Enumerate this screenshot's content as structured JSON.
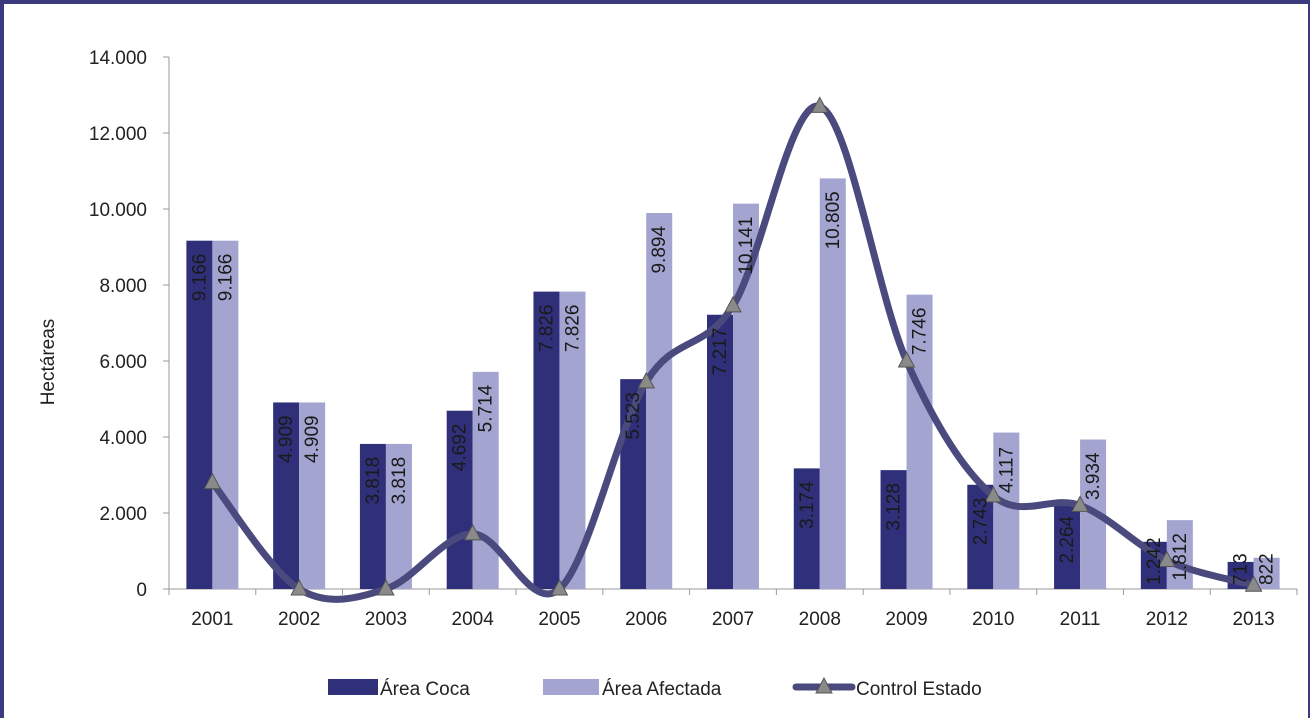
{
  "chart_data": {
    "type": "bar",
    "categories": [
      "2001",
      "2002",
      "2003",
      "2004",
      "2005",
      "2006",
      "2007",
      "2008",
      "2009",
      "2010",
      "2011",
      "2012",
      "2013"
    ],
    "series": [
      {
        "name": "Área Coca",
        "type": "bar",
        "color": "#2f2f7a",
        "values": [
          9166,
          4909,
          3818,
          4692,
          7826,
          5523,
          7217,
          3174,
          3128,
          2743,
          2264,
          1242,
          713
        ],
        "labels": [
          "9.166",
          "4.909",
          "3.818",
          "4.692",
          "7.826",
          "5.523",
          "7.217",
          "3.174",
          "3.128",
          "2.743",
          "2.264",
          "1.242",
          "713"
        ]
      },
      {
        "name": "Área Afectada",
        "type": "bar",
        "color": "#a3a4cf",
        "values": [
          9166,
          4909,
          3818,
          5714,
          7826,
          9894,
          10141,
          10805,
          7746,
          4117,
          3934,
          1812,
          822
        ],
        "labels": [
          "9.166",
          "4.909",
          "3.818",
          "5.714",
          "7.826",
          "9.894",
          "10.141",
          "10.805",
          "7.746",
          "4.117",
          "3.934",
          "1.812",
          "822"
        ]
      },
      {
        "name": "Control Estado",
        "type": "line",
        "color": "#4a4a7e",
        "values": [
          2800,
          0,
          0,
          1450,
          0,
          5450,
          7450,
          12700,
          6000,
          2450,
          2200,
          750,
          100
        ]
      }
    ],
    "ylabel": "Hectáreas",
    "ylim": [
      0,
      14000
    ],
    "yticks": [
      0,
      2000,
      4000,
      6000,
      8000,
      10000,
      12000,
      14000
    ],
    "ytick_labels": [
      "0",
      "2.000",
      "4.000",
      "6.000",
      "8.000",
      "10.000",
      "12.000",
      "14.000"
    ],
    "grid": false,
    "legend_position": "bottom"
  }
}
